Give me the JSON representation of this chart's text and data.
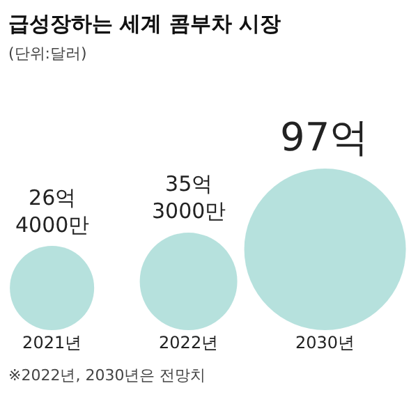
{
  "chart_data": {
    "type": "other",
    "title": "급성장하는 세계 콤부차 시장",
    "subtitle": "(단위:달러)",
    "categories": [
      "2021년",
      "2022년",
      "2030년"
    ],
    "values": [
      26.4,
      35.3,
      97
    ],
    "value_labels": [
      "26억\n4000만",
      "35억\n3000만",
      "97억"
    ],
    "color": "#97d4cf",
    "annotations": [
      "※2022년, 2030년은 전망치"
    ]
  }
}
